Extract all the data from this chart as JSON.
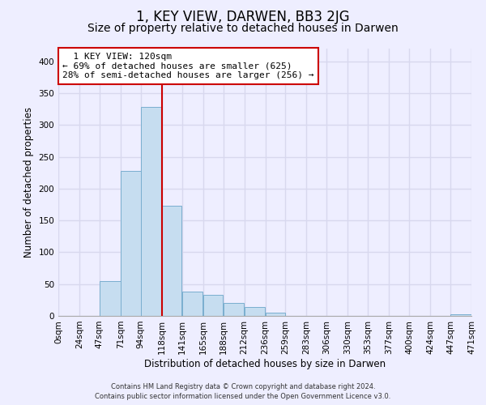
{
  "title": "1, KEY VIEW, DARWEN, BB3 2JG",
  "subtitle": "Size of property relative to detached houses in Darwen",
  "xlabel": "Distribution of detached houses by size in Darwen",
  "ylabel": "Number of detached properties",
  "bar_color": "#c6ddf0",
  "bar_edge_color": "#7aaecf",
  "vline_color": "#cc0000",
  "vline_x": 118,
  "annotation_title": "1 KEY VIEW: 120sqm",
  "annotation_line1": "← 69% of detached houses are smaller (625)",
  "annotation_line2": "28% of semi-detached houses are larger (256) →",
  "annotation_box_color": "#ffffff",
  "annotation_box_edge": "#cc0000",
  "footnote1": "Contains HM Land Registry data © Crown copyright and database right 2024.",
  "footnote2": "Contains public sector information licensed under the Open Government Licence v3.0.",
  "bin_edges": [
    0,
    24,
    47,
    71,
    94,
    118,
    141,
    165,
    188,
    212,
    236,
    259,
    283,
    306,
    330,
    353,
    377,
    400,
    424,
    447,
    471
  ],
  "bar_heights": [
    0,
    0,
    55,
    228,
    328,
    173,
    38,
    33,
    21,
    14,
    5,
    0,
    0,
    0,
    0,
    0,
    0,
    0,
    0,
    2
  ],
  "ylim": [
    0,
    420
  ],
  "yticks": [
    0,
    50,
    100,
    150,
    200,
    250,
    300,
    350,
    400
  ],
  "background_color": "#eeeeff",
  "grid_color": "#d8d8ee",
  "title_fontsize": 12,
  "subtitle_fontsize": 10,
  "axis_label_fontsize": 8.5,
  "tick_fontsize": 7.5
}
